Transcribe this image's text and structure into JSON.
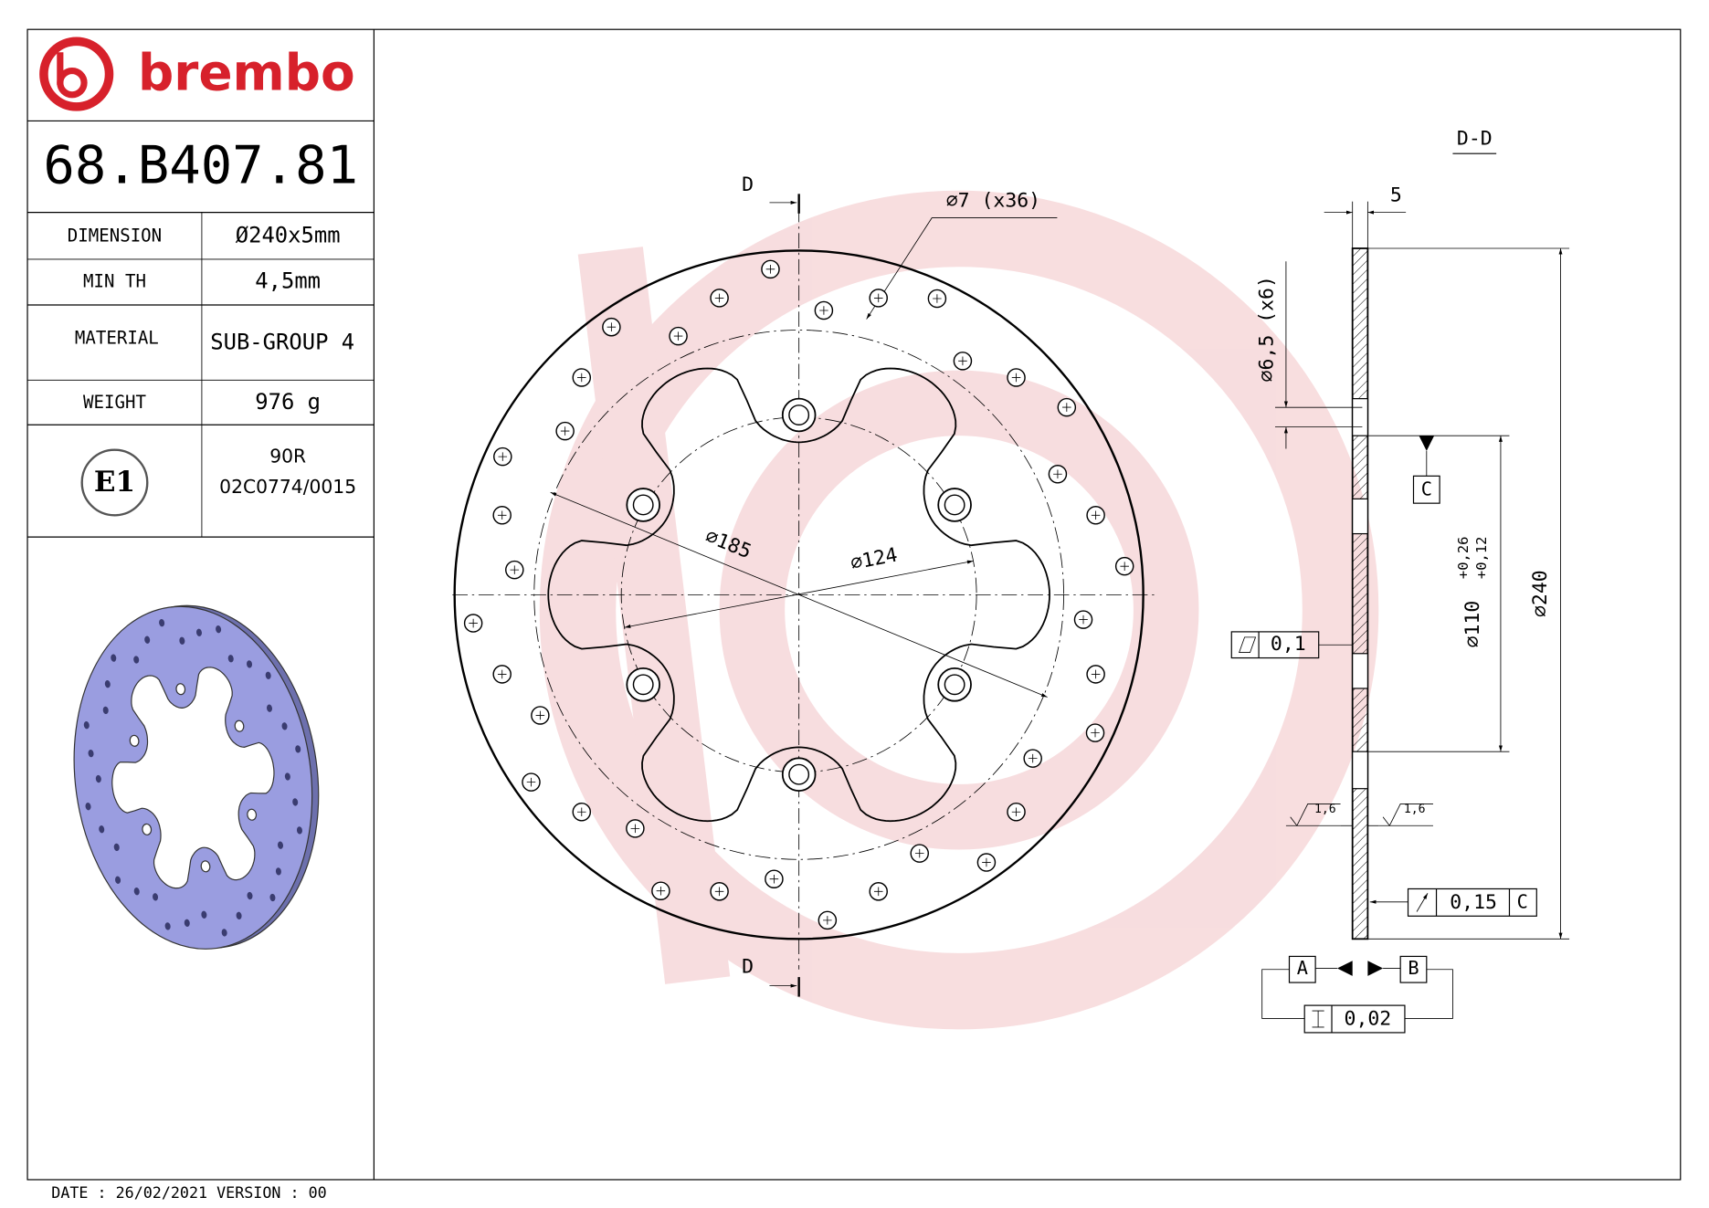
{
  "logo": "brembo",
  "part_number": "68.B407.81",
  "specs": [
    {
      "label": "DIMENSION",
      "value": "Ø240x5mm"
    },
    {
      "label": "MIN TH",
      "value": "4,5mm"
    },
    {
      "label": "MATERIAL",
      "value": "SUB-GROUP 4"
    },
    {
      "label": "WEIGHT",
      "value": "976 g"
    }
  ],
  "approval": {
    "mark": "E1",
    "lines": [
      "90R",
      "02C0774/0015"
    ]
  },
  "footer": "DATE : 26/02/2021 VERSION : 00",
  "drawing": {
    "section_cut_labels": [
      "D",
      "D"
    ],
    "section_view_title": "D-D",
    "hole_callout": "⌀7 (x36)",
    "pitch_diameter": "⌀185",
    "center_bore_diameter": "⌀124",
    "thickness": "5",
    "bolt_hole_callout": "⌀6,5 (x6)",
    "datum_c_reference": "C",
    "flatness": "0,1",
    "hub_diameter": "⌀110",
    "hub_tolerances": [
      "+0,26",
      "+0,12"
    ],
    "outer_diameter": "⌀240",
    "roughness": [
      "1,6",
      "1,6"
    ],
    "runout": {
      "value": "0,15",
      "datum": "C"
    },
    "datums": [
      "A",
      "B"
    ],
    "parallelism": "0,02"
  }
}
